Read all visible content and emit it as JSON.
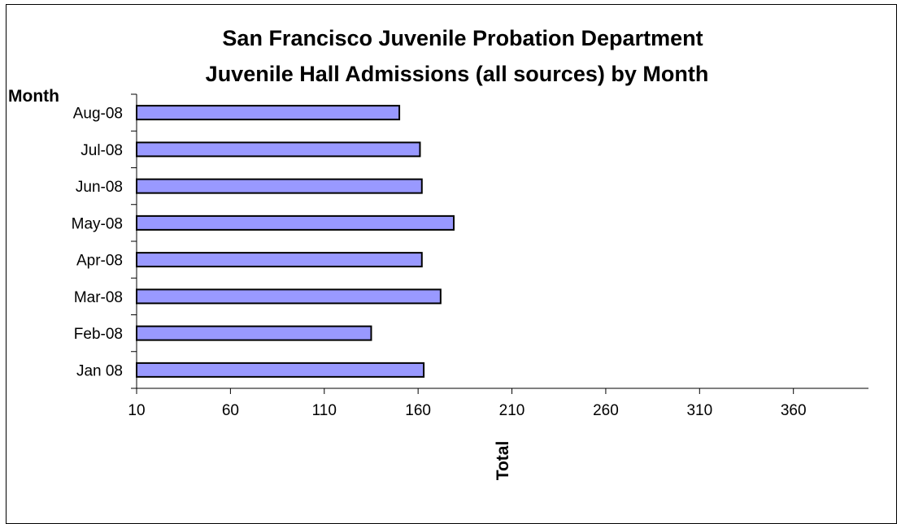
{
  "chart_data": {
    "type": "bar",
    "orientation": "horizontal",
    "title": [
      "San Francisco Juvenile Probation Department",
      "Juvenile Hall Admissions (all sources) by Month"
    ],
    "ylabel": "Month",
    "xlabel": "Total",
    "categories": [
      "Jan 08",
      "Feb-08",
      "Mar-08",
      "Apr-08",
      "May-08",
      "Jun-08",
      "Jul-08",
      "Aug-08"
    ],
    "values": [
      163,
      135,
      172,
      162,
      179,
      162,
      161,
      150
    ],
    "xlim": [
      10,
      400
    ],
    "xticks": [
      10,
      60,
      110,
      160,
      210,
      260,
      310,
      360
    ],
    "grid": false,
    "bar_color": "#9999ff",
    "bar_border_color": "#000000"
  }
}
